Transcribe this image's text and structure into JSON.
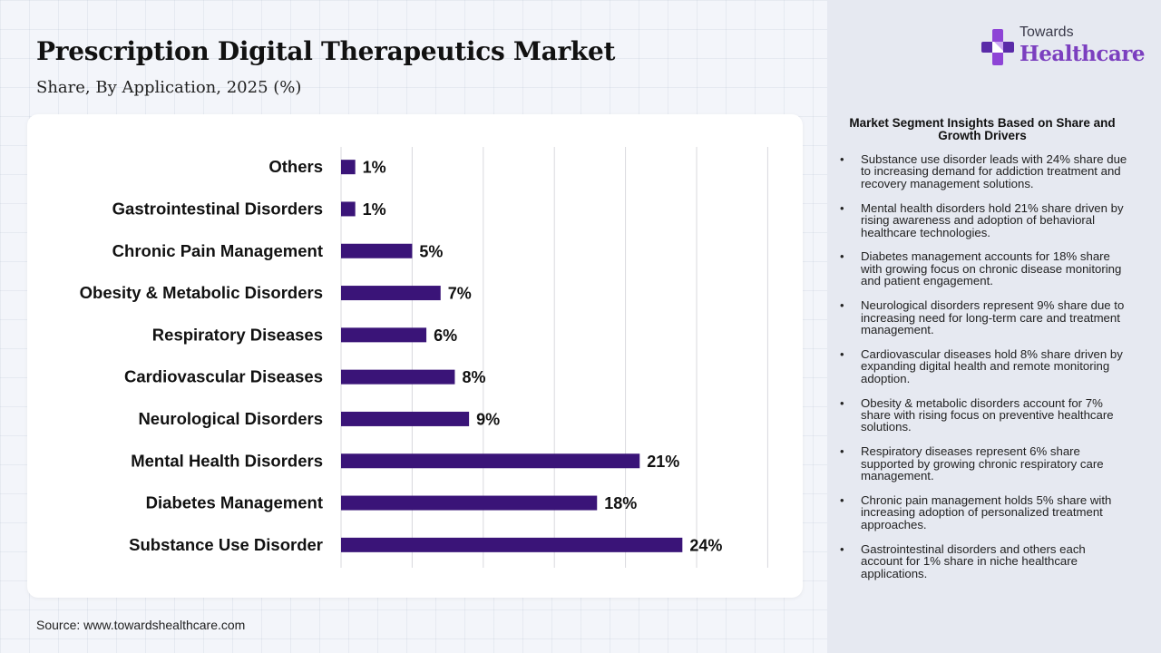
{
  "header": {
    "title": "Prescription Digital Therapeutics Market",
    "subtitle": "Share, By Application, 2025 (%)"
  },
  "logo": {
    "small_text": "Towards",
    "big_text": "Healthcare",
    "icon": "medical-cross-icon"
  },
  "source": "Source: www.towardshealthcare.com",
  "colors": {
    "bar": "#3a1478",
    "accent": "#7b3fbf",
    "grid": "#d9d9de"
  },
  "chart_data": {
    "type": "bar",
    "orientation": "horizontal",
    "categories": [
      "Others",
      "Gastrointestinal Disorders",
      "Chronic Pain Management",
      "Obesity & Metabolic Disorders",
      "Respiratory Diseases",
      "Cardiovascular Diseases",
      "Neurological Disorders",
      "Mental Health Disorders",
      "Diabetes Management",
      "Substance Use Disorder"
    ],
    "values": [
      1,
      1,
      5,
      7,
      6,
      8,
      9,
      21,
      18,
      24
    ],
    "value_labels": [
      "1%",
      "1%",
      "5%",
      "7%",
      "6%",
      "8%",
      "9%",
      "21%",
      "18%",
      "24%"
    ],
    "title": "Prescription Digital Therapeutics Market",
    "subtitle": "Share, By Application, 2025 (%)",
    "xlim": [
      0,
      30
    ],
    "grid": true,
    "legend": "none"
  },
  "insights": {
    "title": "Market Segment Insights Based on Share and Growth Drivers",
    "items": [
      "Substance use disorder leads with 24% share due to increasing demand for addiction treatment and recovery management solutions.",
      "Mental health disorders hold 21% share driven by rising awareness and adoption of behavioral healthcare technologies.",
      "Diabetes management accounts for 18% share with growing focus on chronic disease monitoring and patient engagement.",
      "Neurological disorders represent 9% share due to increasing need for long-term care and treatment management.",
      "Cardiovascular diseases hold 8% share driven by expanding digital health and remote monitoring adoption.",
      "Obesity & metabolic disorders account for 7% share with rising focus on preventive healthcare solutions.",
      "Respiratory diseases represent 6% share supported by growing chronic respiratory care management.",
      "Chronic pain management holds 5% share with increasing adoption of personalized treatment approaches.",
      "Gastrointestinal disorders and others each account for 1% share in niche healthcare applications."
    ]
  }
}
